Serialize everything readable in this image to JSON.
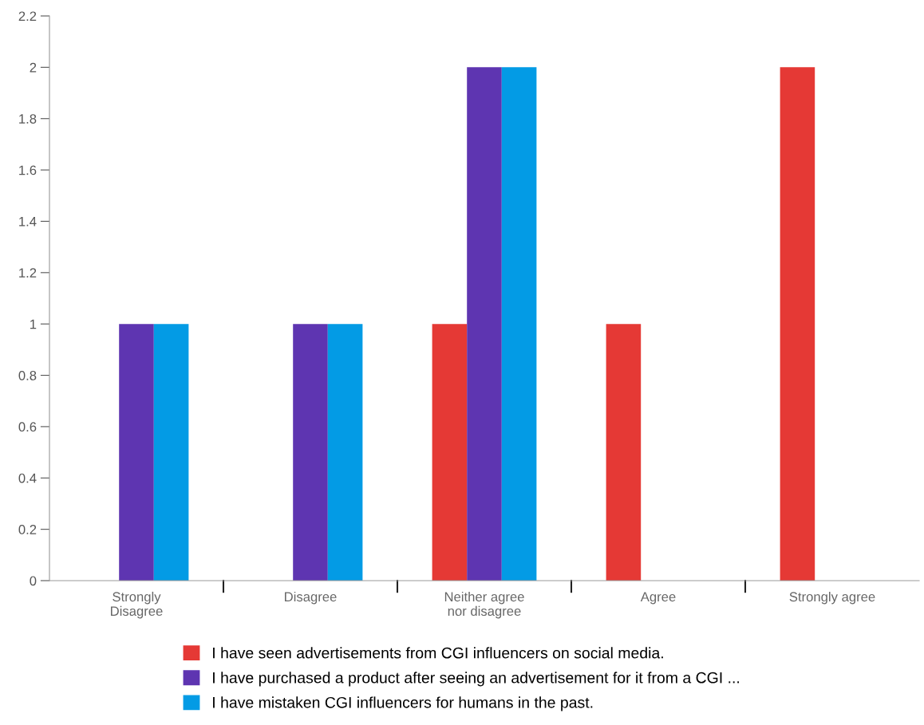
{
  "chart_data": {
    "type": "bar",
    "categories": [
      "Strongly\nDisagree",
      "Disagree",
      "Neither agree\nnor disagree",
      "Agree",
      "Strongly agree"
    ],
    "series": [
      {
        "name": "I have seen advertisements from CGI influencers on social media.",
        "color": "#e53935",
        "values": [
          0,
          0,
          1,
          1,
          2
        ]
      },
      {
        "name": "I have purchased a product after seeing an advertisement for it from a CGI ...",
        "color": "#5e35b1",
        "values": [
          1,
          1,
          2,
          0,
          0
        ]
      },
      {
        "name": "I have mistaken CGI influencers for humans in the past.",
        "color": "#039be5",
        "values": [
          1,
          1,
          2,
          0,
          0
        ]
      }
    ],
    "ylim": [
      0,
      2.2
    ],
    "yticks": [
      0,
      0.2,
      0.4,
      0.6,
      0.8,
      1,
      1.2,
      1.4,
      1.6,
      1.8,
      2,
      2.2
    ],
    "grid": false,
    "legend": "bottom"
  }
}
